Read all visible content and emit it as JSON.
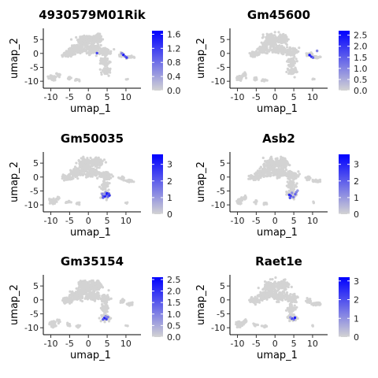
{
  "chart_data": [
    {
      "type": "scatter",
      "title": "4930579M01Rik",
      "xlabel": "umap_1",
      "ylabel": "umap_2",
      "xlim": [
        -12,
        14
      ],
      "ylim": [
        -12.5,
        9
      ],
      "xticks": [
        -10,
        -5,
        0,
        5,
        10
      ],
      "yticks": [
        -10,
        -5,
        0,
        5
      ],
      "xtick_labels": [
        "-10",
        "-5",
        "0",
        "5",
        "10"
      ],
      "ytick_labels": [
        "-10",
        "-5",
        "0",
        "5"
      ],
      "color_low": "#d3d3d3",
      "color_high": "#0000ff",
      "colorbar": {
        "min": 0,
        "max": 1.7,
        "ticks": [
          0.0,
          0.4,
          0.8,
          1.2,
          1.6
        ],
        "tick_labels": [
          "0.0",
          "0.4",
          "0.8",
          "1.2",
          "1.6"
        ]
      },
      "highlight": [
        {
          "x": 2.3,
          "y": 0.1,
          "expr": 1.1
        },
        {
          "x": 9.3,
          "y": -0.5,
          "expr": 1.5
        },
        {
          "x": 9.8,
          "y": -1.1,
          "expr": 0.9
        },
        {
          "x": 10.2,
          "y": -1.5,
          "expr": 1.2
        },
        {
          "x": 8.9,
          "y": 0.0,
          "expr": 0.7
        }
      ]
    },
    {
      "type": "scatter",
      "title": "Gm45600",
      "xlabel": "umap_1",
      "ylabel": "umap_2",
      "xlim": [
        -12,
        14
      ],
      "ylim": [
        -12.5,
        9
      ],
      "xticks": [
        -10,
        -5,
        0,
        5,
        10
      ],
      "yticks": [
        -10,
        -5,
        0,
        5
      ],
      "xtick_labels": [
        "-10",
        "-5",
        "0",
        "5",
        "10"
      ],
      "ytick_labels": [
        "-10",
        "-5",
        "0",
        "5"
      ],
      "color_low": "#d3d3d3",
      "color_high": "#0000ff",
      "colorbar": {
        "min": 0,
        "max": 2.7,
        "ticks": [
          0.0,
          0.5,
          1.0,
          1.5,
          2.0,
          2.5
        ],
        "tick_labels": [
          "0.0",
          "0.5",
          "1.0",
          "1.5",
          "2.0",
          "2.5"
        ]
      },
      "highlight": [
        {
          "x": 9.2,
          "y": -0.6,
          "expr": 2.5
        },
        {
          "x": 9.7,
          "y": -1.2,
          "expr": 2.1
        },
        {
          "x": 10.1,
          "y": -1.5,
          "expr": 1.4
        },
        {
          "x": 11.2,
          "y": 0.9,
          "expr": 1.0
        }
      ]
    },
    {
      "type": "scatter",
      "title": "Gm50035",
      "xlabel": "umap_1",
      "ylabel": "umap_2",
      "xlim": [
        -12,
        14
      ],
      "ylim": [
        -12.5,
        9
      ],
      "xticks": [
        -10,
        -5,
        0,
        5,
        10
      ],
      "yticks": [
        -10,
        -5,
        0,
        5
      ],
      "xtick_labels": [
        "-10",
        "-5",
        "0",
        "5",
        "10"
      ],
      "ytick_labels": [
        "-10",
        "-5",
        "0",
        "5"
      ],
      "color_low": "#d3d3d3",
      "color_high": "#0000ff",
      "colorbar": {
        "min": 0,
        "max": 3.6,
        "ticks": [
          0,
          1,
          2,
          3
        ],
        "tick_labels": [
          "0",
          "1",
          "2",
          "3"
        ]
      },
      "highlight": [
        {
          "x": 4.0,
          "y": -6.6,
          "expr": 2.6
        },
        {
          "x": 4.4,
          "y": -6.9,
          "expr": 3.2
        },
        {
          "x": 4.8,
          "y": -6.3,
          "expr": 2.2
        },
        {
          "x": 5.2,
          "y": -7.1,
          "expr": 1.8
        },
        {
          "x": 3.7,
          "y": -6.1,
          "expr": 1.5
        },
        {
          "x": 5.6,
          "y": -6.6,
          "expr": 2.8
        },
        {
          "x": 4.6,
          "y": -5.6,
          "expr": 1.2
        },
        {
          "x": 3.9,
          "y": -7.4,
          "expr": 2.0
        },
        {
          "x": 5.0,
          "y": -5.9,
          "expr": 3.4
        },
        {
          "x": 4.2,
          "y": -6.2,
          "expr": 1.0
        },
        {
          "x": 5.4,
          "y": -6.0,
          "expr": 2.4
        }
      ]
    },
    {
      "type": "scatter",
      "title": "Asb2",
      "xlabel": "umap_1",
      "ylabel": "umap_2",
      "xlim": [
        -12,
        14
      ],
      "ylim": [
        -12.5,
        9
      ],
      "xticks": [
        -10,
        -5,
        0,
        5,
        10
      ],
      "yticks": [
        -10,
        -5,
        0,
        5
      ],
      "xtick_labels": [
        "-10",
        "-5",
        "0",
        "5",
        "10"
      ],
      "ytick_labels": [
        "-10",
        "-5",
        "0",
        "5"
      ],
      "color_low": "#d3d3d3",
      "color_high": "#0000ff",
      "colorbar": {
        "min": 0,
        "max": 3.6,
        "ticks": [
          0,
          1,
          2,
          3
        ],
        "tick_labels": [
          "0",
          "1",
          "2",
          "3"
        ]
      },
      "highlight": [
        {
          "x": 4.2,
          "y": -6.8,
          "expr": 2.4
        },
        {
          "x": 4.9,
          "y": -7.2,
          "expr": 1.6
        },
        {
          "x": 5.4,
          "y": -6.2,
          "expr": 1.9
        },
        {
          "x": 4.5,
          "y": -5.7,
          "expr": 1.2
        },
        {
          "x": 3.8,
          "y": -6.4,
          "expr": 2.8
        },
        {
          "x": 5.7,
          "y": -5.4,
          "expr": 1.4
        },
        {
          "x": 6.0,
          "y": -4.9,
          "expr": 1.0
        },
        {
          "x": 4.0,
          "y": -7.5,
          "expr": 2.1
        }
      ]
    },
    {
      "type": "scatter",
      "title": "Gm35154",
      "xlabel": "umap_1",
      "ylabel": "umap_2",
      "xlim": [
        -12,
        14
      ],
      "ylim": [
        -12.5,
        9
      ],
      "xticks": [
        -10,
        -5,
        0,
        5,
        10
      ],
      "yticks": [
        -10,
        -5,
        0,
        5
      ],
      "xtick_labels": [
        "-10",
        "-5",
        "0",
        "5",
        "10"
      ],
      "ytick_labels": [
        "-10",
        "-5",
        "0",
        "5"
      ],
      "color_low": "#d3d3d3",
      "color_high": "#0000ff",
      "colorbar": {
        "min": 0,
        "max": 2.6,
        "ticks": [
          0.0,
          0.5,
          1.0,
          1.5,
          2.0,
          2.5
        ],
        "tick_labels": [
          "0.0",
          "0.5",
          "1.0",
          "1.5",
          "2.0",
          "2.5"
        ]
      },
      "highlight": [
        {
          "x": 4.3,
          "y": -6.5,
          "expr": 2.4
        },
        {
          "x": 4.8,
          "y": -6.9,
          "expr": 1.8
        },
        {
          "x": 5.2,
          "y": -6.2,
          "expr": 1.1
        },
        {
          "x": 3.9,
          "y": -7.0,
          "expr": 1.5
        },
        {
          "x": 4.6,
          "y": -5.9,
          "expr": 0.9
        }
      ]
    },
    {
      "type": "scatter",
      "title": "Raet1e",
      "xlabel": "umap_1",
      "ylabel": "umap_2",
      "xlim": [
        -12,
        14
      ],
      "ylim": [
        -12.5,
        9
      ],
      "xticks": [
        -10,
        -5,
        0,
        5,
        10
      ],
      "yticks": [
        -10,
        -5,
        0,
        5
      ],
      "xtick_labels": [
        "-10",
        "-5",
        "0",
        "5",
        "10"
      ],
      "ytick_labels": [
        "-10",
        "-5",
        "0",
        "5"
      ],
      "color_low": "#d3d3d3",
      "color_high": "#0000ff",
      "colorbar": {
        "min": 0,
        "max": 3.2,
        "ticks": [
          0,
          1,
          2,
          3
        ],
        "tick_labels": [
          "0",
          "1",
          "2",
          "3"
        ]
      },
      "highlight": [
        {
          "x": 4.5,
          "y": -6.7,
          "expr": 2.2
        },
        {
          "x": 5.0,
          "y": -7.0,
          "expr": 1.5
        },
        {
          "x": 4.1,
          "y": -6.3,
          "expr": 1.0
        },
        {
          "x": 5.3,
          "y": -6.4,
          "expr": 2.8
        }
      ]
    }
  ]
}
